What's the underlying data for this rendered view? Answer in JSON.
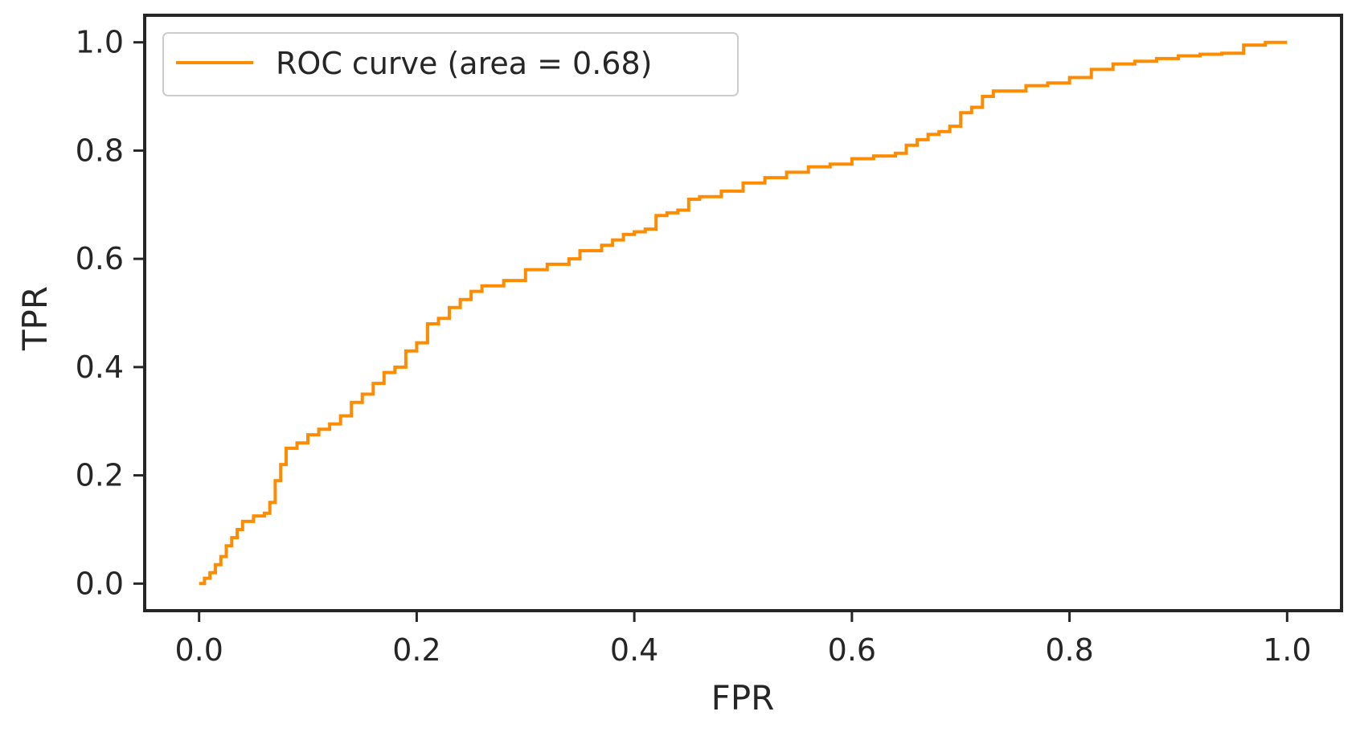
{
  "chart_data": {
    "type": "line",
    "xlabel": "FPR",
    "ylabel": "TPR",
    "xlim": [
      -0.05,
      1.05
    ],
    "ylim": [
      -0.05,
      1.05
    ],
    "x_ticks": [
      "0.0",
      "0.2",
      "0.4",
      "0.6",
      "0.8",
      "1.0"
    ],
    "y_ticks": [
      "0.0",
      "0.2",
      "0.4",
      "0.6",
      "0.8",
      "1.0"
    ],
    "grid": false,
    "legend_position": "top-left",
    "series": [
      {
        "name": "ROC curve (area =  0.68)",
        "color": "#ff8c00",
        "x": [
          0.0,
          0.005,
          0.01,
          0.015,
          0.02,
          0.025,
          0.03,
          0.035,
          0.04,
          0.05,
          0.06,
          0.065,
          0.07,
          0.075,
          0.08,
          0.09,
          0.1,
          0.11,
          0.12,
          0.13,
          0.14,
          0.15,
          0.16,
          0.17,
          0.18,
          0.19,
          0.2,
          0.21,
          0.22,
          0.23,
          0.24,
          0.25,
          0.26,
          0.28,
          0.3,
          0.32,
          0.34,
          0.35,
          0.37,
          0.38,
          0.39,
          0.4,
          0.41,
          0.42,
          0.43,
          0.44,
          0.45,
          0.46,
          0.48,
          0.5,
          0.52,
          0.54,
          0.56,
          0.58,
          0.6,
          0.62,
          0.64,
          0.65,
          0.66,
          0.67,
          0.68,
          0.69,
          0.7,
          0.71,
          0.72,
          0.73,
          0.74,
          0.76,
          0.78,
          0.8,
          0.82,
          0.84,
          0.86,
          0.88,
          0.9,
          0.92,
          0.94,
          0.96,
          0.98,
          1.0
        ],
        "y": [
          0.0,
          0.01,
          0.02,
          0.035,
          0.05,
          0.07,
          0.085,
          0.1,
          0.115,
          0.125,
          0.13,
          0.15,
          0.19,
          0.22,
          0.25,
          0.26,
          0.275,
          0.285,
          0.295,
          0.31,
          0.335,
          0.35,
          0.37,
          0.39,
          0.4,
          0.43,
          0.445,
          0.48,
          0.49,
          0.51,
          0.525,
          0.54,
          0.55,
          0.56,
          0.58,
          0.59,
          0.6,
          0.615,
          0.625,
          0.635,
          0.645,
          0.65,
          0.655,
          0.68,
          0.685,
          0.69,
          0.71,
          0.715,
          0.725,
          0.74,
          0.75,
          0.76,
          0.77,
          0.775,
          0.785,
          0.79,
          0.795,
          0.81,
          0.82,
          0.83,
          0.835,
          0.845,
          0.87,
          0.88,
          0.9,
          0.91,
          0.91,
          0.92,
          0.925,
          0.935,
          0.95,
          0.96,
          0.965,
          0.97,
          0.975,
          0.978,
          0.98,
          0.995,
          1.0,
          1.0
        ]
      }
    ]
  }
}
